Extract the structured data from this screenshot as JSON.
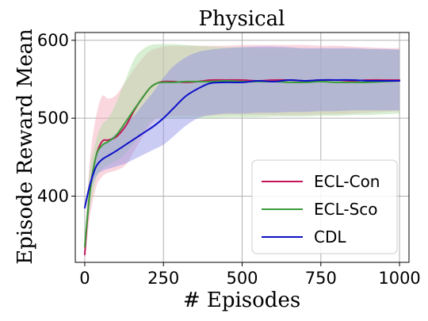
{
  "chart_data": {
    "type": "line",
    "title": "Physical",
    "xlabel": "# Episodes",
    "ylabel": "Episode Reward Mean",
    "xlim": [
      -30,
      1030
    ],
    "ylim": [
      315,
      610
    ],
    "xticks": [
      0,
      250,
      500,
      750,
      1000
    ],
    "xtick_labels": [
      "0",
      "250",
      "500",
      "750",
      "1000"
    ],
    "yticks": [
      400,
      500,
      600
    ],
    "ytick_labels": [
      "400",
      "500",
      "600"
    ],
    "grid": true,
    "legend_position": "bottom-right",
    "series": [
      {
        "name": "ECL-Con",
        "color": "#c2185b",
        "band_color": "#f4a7b9",
        "x": [
          0,
          15,
          35,
          55,
          75,
          100,
          130,
          160,
          190,
          210,
          230,
          250,
          280,
          320,
          360,
          400,
          450,
          500,
          550,
          600,
          650,
          700,
          750,
          800,
          850,
          900,
          950,
          1000
        ],
        "mean": [
          325,
          400,
          450,
          470,
          472,
          476,
          490,
          512,
          530,
          540,
          545,
          547,
          547,
          546,
          547,
          549,
          549,
          549,
          548,
          549,
          549,
          548,
          549,
          549,
          548,
          549,
          549,
          549
        ],
        "upper": [
          335,
          440,
          500,
          528,
          525,
          530,
          547,
          565,
          580,
          587,
          590,
          592,
          593,
          593,
          593,
          593,
          593,
          594,
          594,
          594,
          594,
          594,
          593,
          593,
          592,
          591,
          590,
          590
        ],
        "lower": [
          315,
          370,
          410,
          425,
          430,
          433,
          440,
          460,
          480,
          492,
          500,
          503,
          503,
          503,
          503,
          503,
          504,
          504,
          504,
          504,
          504,
          504,
          505,
          505,
          506,
          507,
          508,
          509
        ]
      },
      {
        "name": "ECL-Sco",
        "color": "#3a9c3a",
        "band_color": "#a8dca0",
        "x": [
          0,
          15,
          35,
          55,
          75,
          100,
          130,
          160,
          190,
          210,
          230,
          250,
          280,
          320,
          360,
          400,
          450,
          500,
          550,
          600,
          650,
          700,
          750,
          800,
          850,
          900,
          950,
          1000
        ],
        "mean": [
          335,
          400,
          450,
          465,
          470,
          478,
          495,
          513,
          530,
          540,
          545,
          546,
          546,
          547,
          547,
          547,
          548,
          547,
          547,
          547,
          546,
          546,
          547,
          546,
          546,
          546,
          547,
          548
        ],
        "upper": [
          340,
          430,
          470,
          492,
          500,
          520,
          550,
          578,
          590,
          594,
          595,
          595,
          595,
          594,
          593,
          592,
          591,
          591,
          590,
          590,
          590,
          589,
          589,
          589,
          589,
          589,
          588,
          588
        ],
        "lower": [
          330,
          380,
          420,
          435,
          440,
          445,
          455,
          470,
          485,
          495,
          500,
          500,
          500,
          500,
          500,
          500,
          501,
          501,
          501,
          502,
          502,
          502,
          503,
          503,
          504,
          504,
          505,
          506
        ]
      },
      {
        "name": "CDL",
        "color": "#0b10c8",
        "band_color": "#8b8ee6",
        "x": [
          0,
          15,
          35,
          55,
          75,
          100,
          130,
          160,
          190,
          220,
          250,
          280,
          320,
          360,
          400,
          450,
          500,
          550,
          600,
          650,
          700,
          750,
          800,
          850,
          900,
          950,
          1000
        ],
        "mean": [
          385,
          412,
          437,
          447,
          452,
          458,
          466,
          474,
          482,
          490,
          500,
          512,
          528,
          538,
          545,
          546,
          546,
          548,
          547,
          549,
          548,
          549,
          549,
          549,
          548,
          548,
          548
        ],
        "upper": [
          388,
          418,
          450,
          465,
          472,
          480,
          492,
          505,
          520,
          535,
          552,
          566,
          578,
          585,
          588,
          590,
          591,
          592,
          592,
          591,
          590,
          590,
          590,
          590,
          589,
          589,
          588
        ],
        "lower": [
          382,
          404,
          425,
          432,
          435,
          438,
          442,
          448,
          454,
          460,
          466,
          476,
          490,
          500,
          504,
          506,
          506,
          507,
          507,
          508,
          508,
          509,
          509,
          510,
          510,
          510,
          510
        ]
      }
    ]
  }
}
